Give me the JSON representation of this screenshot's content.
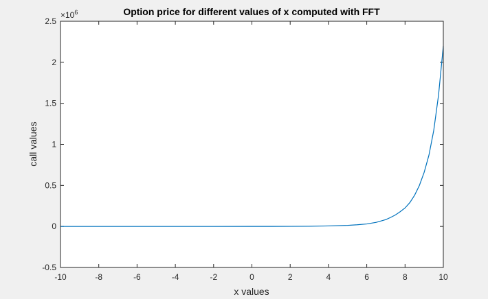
{
  "chart_data": {
    "type": "line",
    "title": "Option price for different values of x computed with FFT",
    "xlabel": "x values",
    "ylabel": "call values",
    "xlim": [
      -10,
      10
    ],
    "ylim": [
      -0.5,
      2.5
    ],
    "y_exponent_label": "×10",
    "y_exponent_power": "6",
    "xticks": [
      -10,
      -8,
      -6,
      -4,
      -2,
      0,
      2,
      4,
      6,
      8,
      10
    ],
    "yticks": [
      -0.5,
      0,
      0.5,
      1,
      1.5,
      2,
      2.5
    ],
    "xtick_labels": [
      "-10",
      "-8",
      "-6",
      "-4",
      "-2",
      "0",
      "2",
      "4",
      "6",
      "8",
      "10"
    ],
    "ytick_labels": [
      "-0.5",
      "0",
      "0.5",
      "1",
      "1.5",
      "2",
      "2.5"
    ],
    "grid": false,
    "line_color": "#0072bd",
    "series": [
      {
        "x": [
          -10,
          -8,
          -6,
          -4,
          -2,
          0,
          1,
          2,
          3,
          4,
          5,
          5.5,
          6,
          6.5,
          7,
          7.25,
          7.5,
          7.75,
          8,
          8.25,
          8.5,
          8.75,
          9,
          9.25,
          9.5,
          9.75,
          10
        ],
        "y": [
          0,
          0,
          0,
          0,
          0,
          0.0001,
          0.0003,
          0.0008,
          0.002,
          0.006,
          0.013,
          0.02,
          0.03,
          0.05,
          0.083,
          0.11,
          0.14,
          0.18,
          0.225,
          0.29,
          0.38,
          0.5,
          0.66,
          0.87,
          1.17,
          1.6,
          2.2
        ]
      }
    ]
  }
}
